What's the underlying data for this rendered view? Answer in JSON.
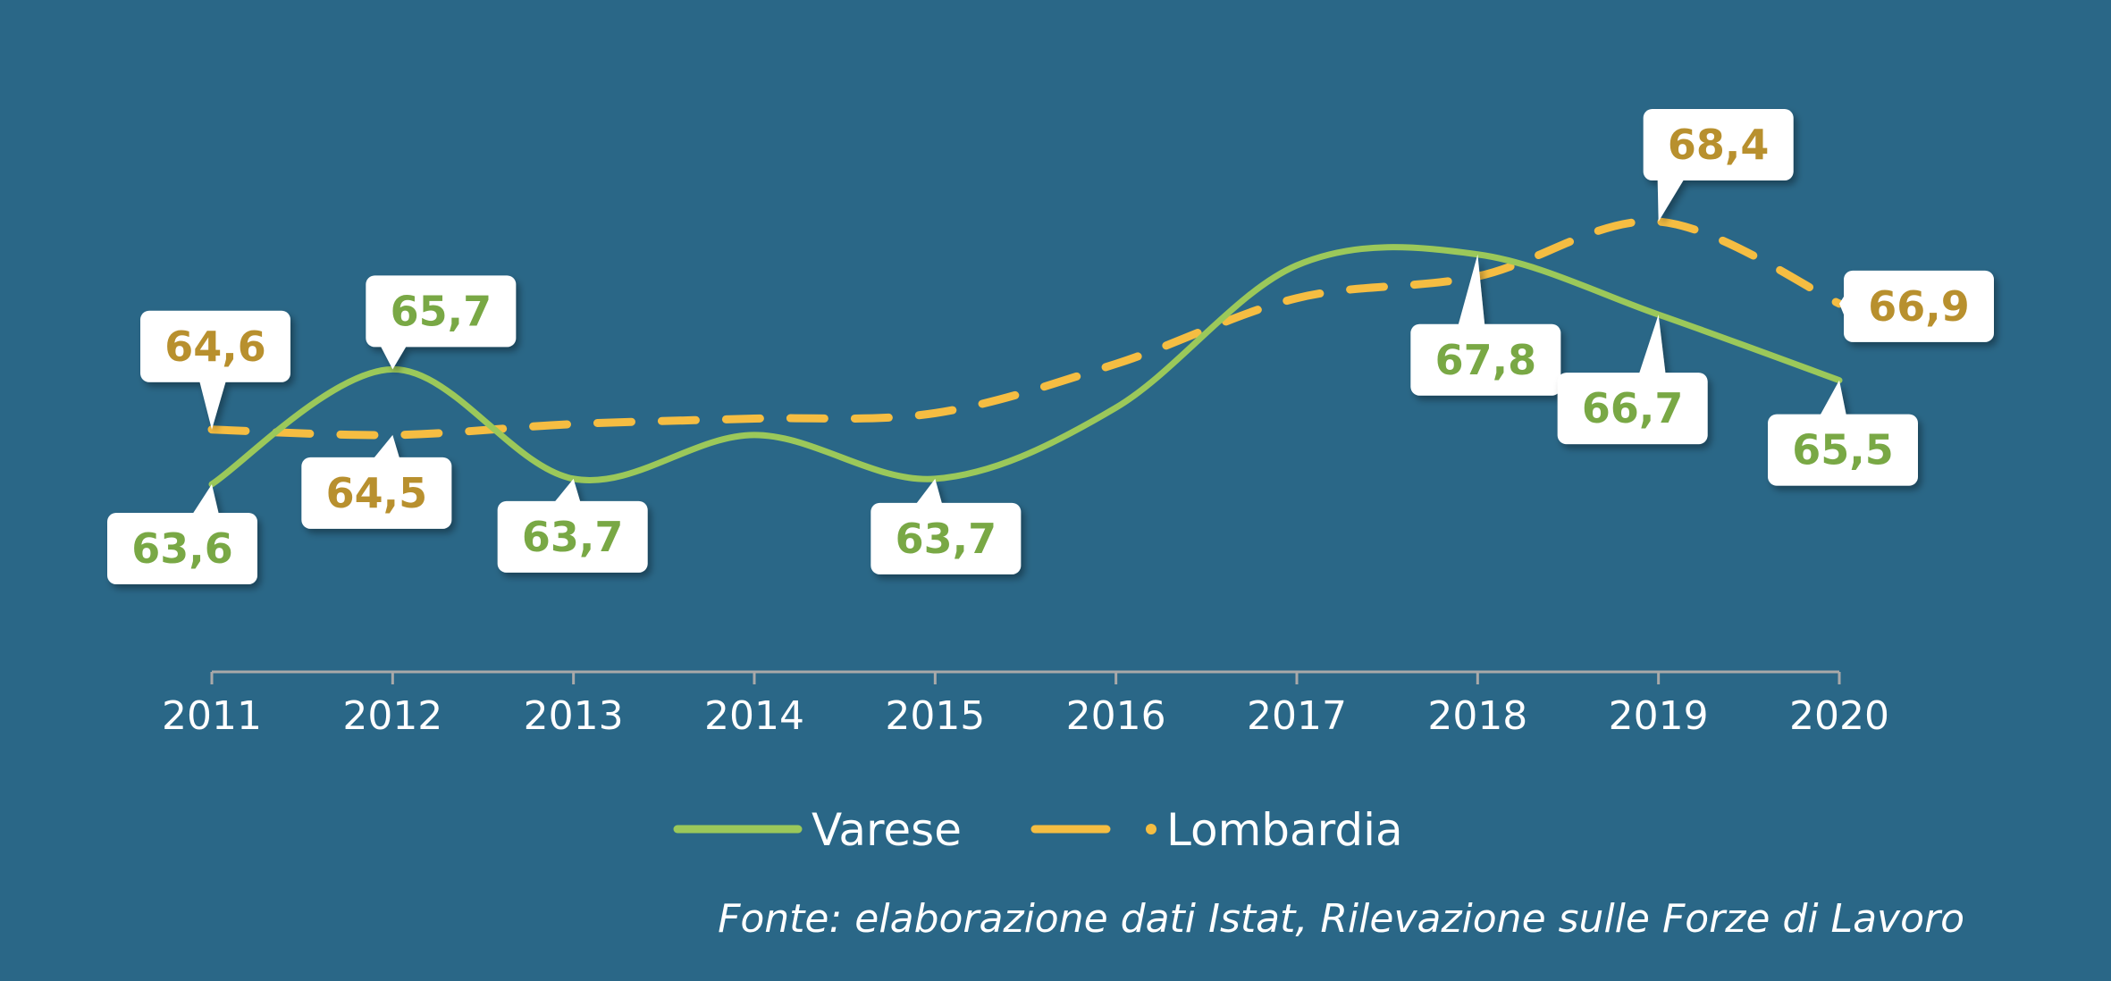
{
  "chart_data": {
    "type": "line",
    "title": "",
    "xlabel": "",
    "ylabel": "",
    "categories": [
      "2011",
      "2012",
      "2013",
      "2014",
      "2015",
      "2016",
      "2017",
      "2018",
      "2019",
      "2020"
    ],
    "ylim": [
      62,
      70
    ],
    "grid": false,
    "legend_position": "bottom",
    "series": [
      {
        "name": "Varese",
        "color": "#9bc85a",
        "line_style": "solid",
        "values": [
          63.6,
          65.7,
          63.7,
          64.5,
          63.7,
          65.0,
          67.6,
          67.8,
          66.7,
          65.5
        ],
        "labels": [
          "63,6",
          "65,7",
          "63,7",
          null,
          "63,7",
          null,
          null,
          "67,8",
          "66,7",
          "65,5"
        ]
      },
      {
        "name": "Lombardia",
        "color": "#f5bd42",
        "line_style": "dashed",
        "values": [
          64.6,
          64.5,
          64.7,
          64.8,
          64.9,
          65.8,
          67.0,
          67.4,
          68.4,
          66.9
        ],
        "labels": [
          "64,6",
          "64,5",
          null,
          null,
          null,
          null,
          null,
          null,
          "68,4",
          "66,9"
        ]
      }
    ],
    "label_colors": {
      "Varese": "#79a845",
      "Lombardia": "#b8902e"
    }
  },
  "source_note": "Fonte: elaborazione dati Istat, Rilevazione sulle Forze di Lavoro"
}
